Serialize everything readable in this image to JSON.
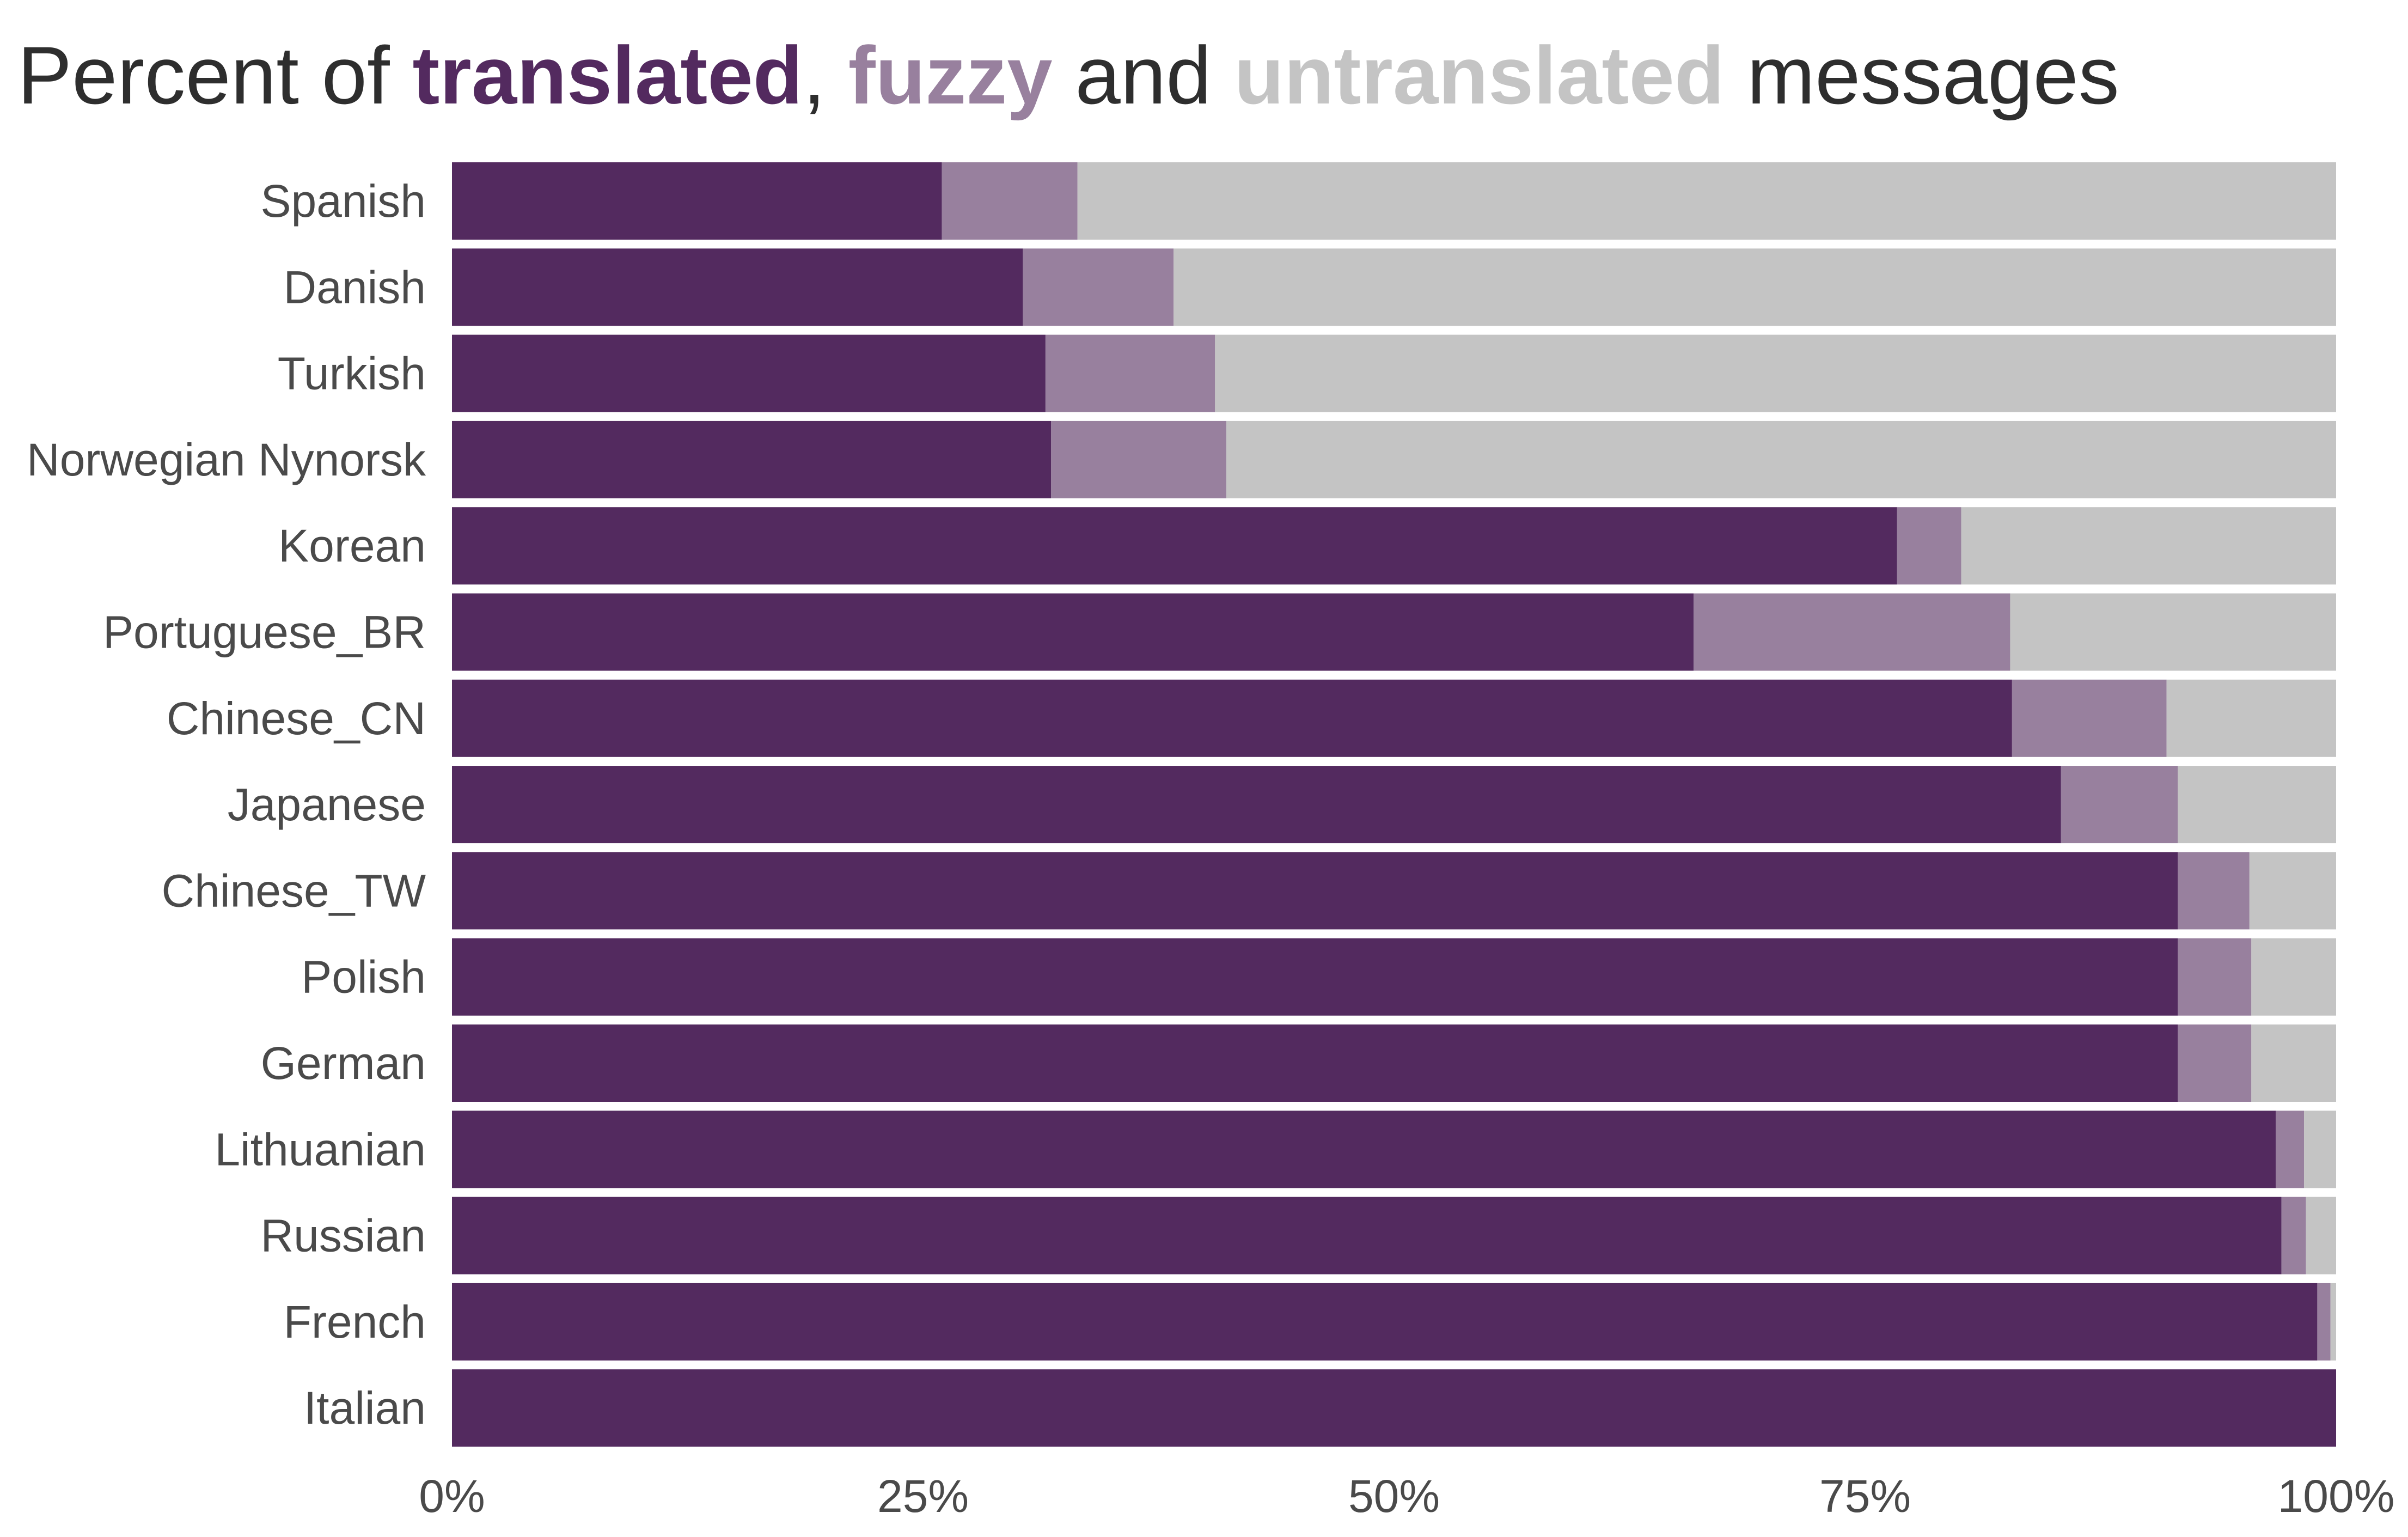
{
  "chart_data": {
    "type": "bar",
    "orientation": "horizontal",
    "stacked": true,
    "title": {
      "prefix": "Percent of ",
      "translated_word": "translated",
      "comma": ",",
      "fuzzy_word": "fuzzy",
      "and_word": " and ",
      "untranslated_word": "untranslated",
      "suffix": " messages"
    },
    "categories": [
      "Spanish",
      "Danish",
      "Turkish",
      "Norwegian Nynorsk",
      "Korean",
      "Portuguese_BR",
      "Chinese_CN",
      "Japanese",
      "Chinese_TW",
      "Polish",
      "German",
      "Lithuanian",
      "Russian",
      "French",
      "Italian"
    ],
    "series": [
      {
        "key": "translated",
        "color": "#532a5f",
        "values": [
          26.0,
          30.3,
          31.5,
          31.8,
          76.7,
          65.9,
          82.8,
          85.4,
          91.6,
          91.6,
          91.6,
          96.8,
          97.1,
          99.0,
          100.0
        ]
      },
      {
        "key": "fuzzy",
        "color": "#98809e",
        "values": [
          7.2,
          8.0,
          9.0,
          9.3,
          3.4,
          16.8,
          8.2,
          6.2,
          3.8,
          3.9,
          3.9,
          1.5,
          1.3,
          0.7,
          0.0
        ]
      },
      {
        "key": "untranslated",
        "color": "#c4c4c4",
        "values": [
          66.8,
          61.7,
          59.5,
          58.9,
          19.9,
          17.3,
          9.0,
          8.4,
          4.6,
          4.5,
          4.5,
          1.7,
          1.6,
          0.3,
          0.0
        ]
      }
    ],
    "x_ticks": [
      "0%",
      "25%",
      "50%",
      "75%",
      "100%"
    ],
    "x_tick_values": [
      0,
      25,
      50,
      75,
      100
    ],
    "xlim": [
      0,
      100
    ],
    "xlabel": "",
    "ylabel": "",
    "grid": false,
    "legend": "none (colors explained in title)"
  }
}
